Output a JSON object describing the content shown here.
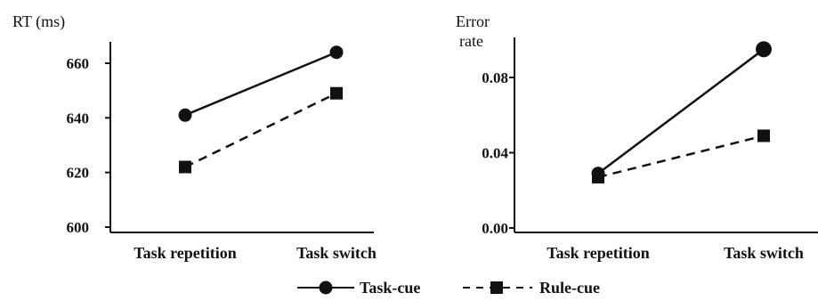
{
  "chart_data": [
    {
      "type": "line",
      "ylabel": "RT (ms)",
      "categories": [
        "Task repetition",
        "Task switch"
      ],
      "ylim": [
        600,
        660
      ],
      "yticks": [
        600,
        620,
        640,
        660
      ],
      "series": [
        {
          "name": "Task-cue",
          "values": [
            641,
            664
          ],
          "style": "solid",
          "marker": "circle"
        },
        {
          "name": "Rule-cue",
          "values": [
            622,
            649
          ],
          "style": "dashed",
          "marker": "square"
        }
      ]
    },
    {
      "type": "line",
      "ylabel": "Error rate",
      "categories": [
        "Task repetition",
        "Task switch"
      ],
      "ylim": [
        0.0,
        0.08
      ],
      "yticks": [
        "0.00",
        "0.04",
        "0.08"
      ],
      "series": [
        {
          "name": "Task-cue",
          "values": [
            0.029,
            0.095
          ],
          "style": "solid",
          "marker": "circle"
        },
        {
          "name": "Rule-cue",
          "values": [
            0.027,
            0.049
          ],
          "style": "dashed",
          "marker": "square"
        }
      ]
    }
  ],
  "legend": [
    {
      "label": "Task-cue"
    },
    {
      "label": "Rule-cue"
    }
  ],
  "colors": {
    "ink": "#111111",
    "background": "#ffffff"
  }
}
